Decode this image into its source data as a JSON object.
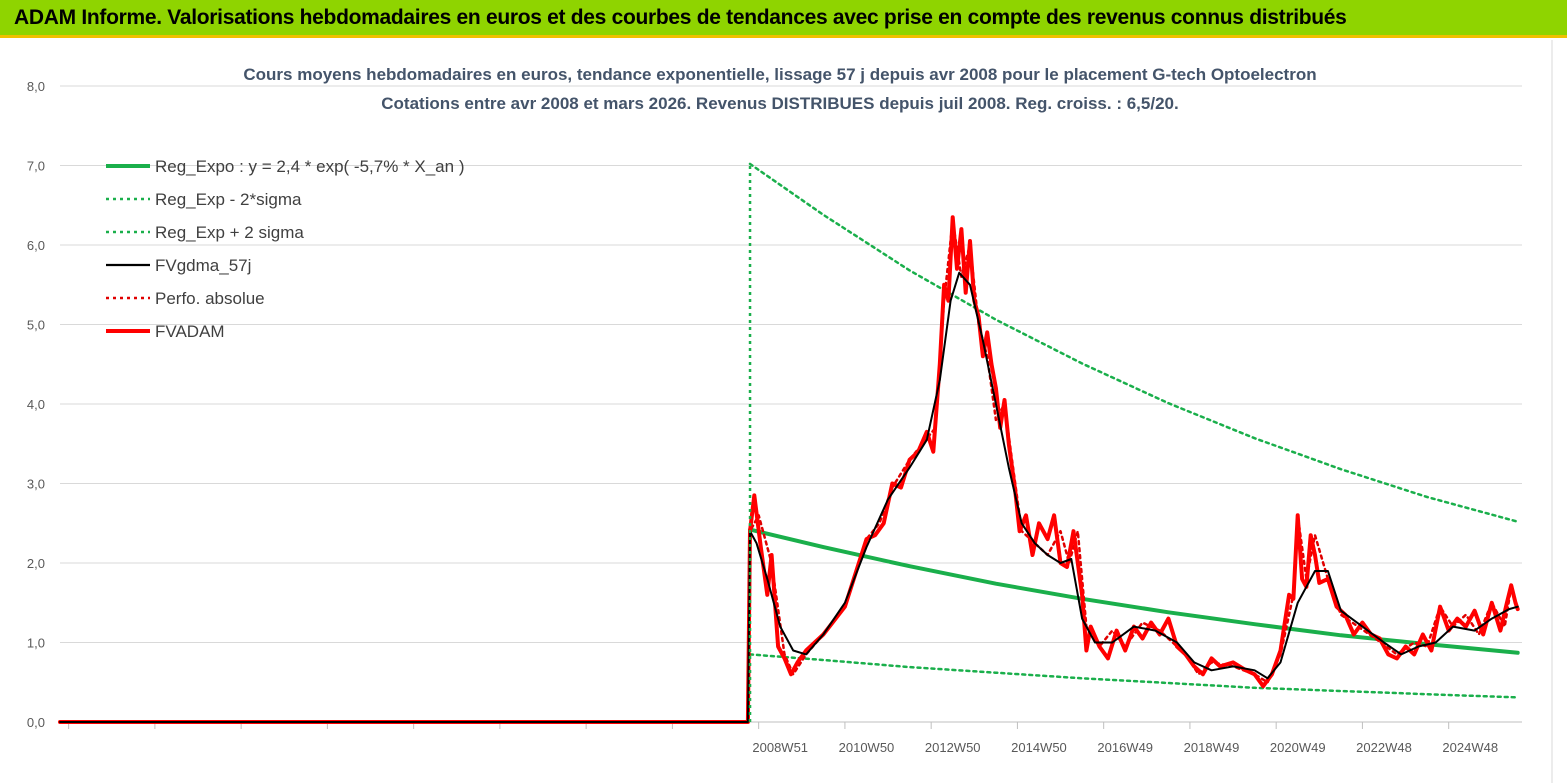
{
  "header": {
    "banner": "ADAM Informe. Valorisations hebdomadaires en euros et des courbes de tendances avec prise en compte des revenus connus distribués"
  },
  "colors": {
    "banner_bg": "#8fd400",
    "regression": "#1aaf4b",
    "sigma_band": "#1aaf4b",
    "smoothed": "#000000",
    "perfo": "#e00000",
    "price": "#ff0000"
  },
  "chart_data": {
    "type": "line",
    "title": "Cours moyens hebdomadaires en euros, tendance exponentielle, lissage 57 j depuis avr 2008 pour le placement G-tech Optoelectron",
    "subtitle": "Cotations entre avr 2008 et mars 2026. Revenus DISTRIBUES depuis juil 2008. Reg. croiss. : 6,5/20.",
    "xlabel": "",
    "ylabel": "",
    "x_range": [
      1992.3,
      2026.2
    ],
    "ylim": [
      0,
      8
    ],
    "yticks": [
      0,
      1,
      2,
      3,
      4,
      5,
      6,
      7,
      8
    ],
    "ytick_labels": [
      "0,0",
      "1,0",
      "2,0",
      "3,0",
      "4,0",
      "5,0",
      "6,0",
      "7,0",
      "8,0"
    ],
    "xtick_labels": [
      {
        "x": 2009.0,
        "label": "2008W51"
      },
      {
        "x": 2011.0,
        "label": "2010W50"
      },
      {
        "x": 2013.0,
        "label": "2012W50"
      },
      {
        "x": 2015.0,
        "label": "2014W50"
      },
      {
        "x": 2017.0,
        "label": "2016W49"
      },
      {
        "x": 2019.0,
        "label": "2018W49"
      },
      {
        "x": 2021.0,
        "label": "2020W49"
      },
      {
        "x": 2023.0,
        "label": "2022W48"
      },
      {
        "x": 2025.0,
        "label": "2024W48"
      }
    ],
    "grid": true,
    "legend_position": "top-left",
    "series": [
      {
        "name": "Reg_Expo : y = 2,4 * exp( -5,7% *  X_an )",
        "style": "solid-thick",
        "color": "#1aaf4b",
        "points": [
          [
            2008.3,
            2.42
          ],
          [
            2010,
            2.2
          ],
          [
            2012,
            1.96
          ],
          [
            2014,
            1.74
          ],
          [
            2016,
            1.55
          ],
          [
            2018,
            1.38
          ],
          [
            2020,
            1.23
          ],
          [
            2022,
            1.09
          ],
          [
            2024,
            0.98
          ],
          [
            2026.1,
            0.87
          ]
        ]
      },
      {
        "name": "Reg_Exp - 2*sigma",
        "style": "dotted",
        "color": "#1aaf4b",
        "points": [
          [
            2008.3,
            0.85
          ],
          [
            2010,
            0.78
          ],
          [
            2012,
            0.69
          ],
          [
            2014,
            0.62
          ],
          [
            2016,
            0.55
          ],
          [
            2018,
            0.49
          ],
          [
            2020,
            0.43
          ],
          [
            2022,
            0.39
          ],
          [
            2024,
            0.35
          ],
          [
            2026.1,
            0.31
          ]
        ]
      },
      {
        "name": "Reg_Exp + 2 sigma",
        "style": "dotted",
        "color": "#1aaf4b",
        "points": [
          [
            2008.3,
            7.02
          ],
          [
            2010,
            6.38
          ],
          [
            2012,
            5.68
          ],
          [
            2014,
            5.06
          ],
          [
            2016,
            4.51
          ],
          [
            2018,
            4.01
          ],
          [
            2020,
            3.57
          ],
          [
            2022,
            3.18
          ],
          [
            2024,
            2.83
          ],
          [
            2026.1,
            2.52
          ]
        ]
      },
      {
        "name": "FVgdma_57j",
        "style": "solid",
        "color": "#000000",
        "points": [
          [
            1992.3,
            0
          ],
          [
            2008.25,
            0
          ],
          [
            2008.3,
            2.4
          ],
          [
            2008.45,
            2.25
          ],
          [
            2008.7,
            1.8
          ],
          [
            2009.0,
            1.2
          ],
          [
            2009.3,
            0.9
          ],
          [
            2009.6,
            0.85
          ],
          [
            2010.0,
            1.1
          ],
          [
            2010.5,
            1.5
          ],
          [
            2011.0,
            2.2
          ],
          [
            2011.5,
            2.8
          ],
          [
            2012.0,
            3.2
          ],
          [
            2012.4,
            3.55
          ],
          [
            2012.7,
            4.3
          ],
          [
            2012.95,
            5.3
          ],
          [
            2013.15,
            5.65
          ],
          [
            2013.4,
            5.5
          ],
          [
            2013.7,
            4.8
          ],
          [
            2014.0,
            4.0
          ],
          [
            2014.3,
            3.2
          ],
          [
            2014.6,
            2.5
          ],
          [
            2014.9,
            2.25
          ],
          [
            2015.2,
            2.1
          ],
          [
            2015.5,
            2.0
          ],
          [
            2015.75,
            2.05
          ],
          [
            2016.0,
            1.3
          ],
          [
            2016.3,
            1.0
          ],
          [
            2016.7,
            1.0
          ],
          [
            2017.2,
            1.2
          ],
          [
            2017.7,
            1.15
          ],
          [
            2018.2,
            1.0
          ],
          [
            2018.6,
            0.75
          ],
          [
            2019.0,
            0.65
          ],
          [
            2019.5,
            0.7
          ],
          [
            2020.0,
            0.65
          ],
          [
            2020.3,
            0.55
          ],
          [
            2020.6,
            0.75
          ],
          [
            2021.0,
            1.5
          ],
          [
            2021.4,
            1.9
          ],
          [
            2021.7,
            1.9
          ],
          [
            2022.0,
            1.4
          ],
          [
            2022.5,
            1.2
          ],
          [
            2023.0,
            1.0
          ],
          [
            2023.4,
            0.85
          ],
          [
            2023.8,
            0.95
          ],
          [
            2024.2,
            1.0
          ],
          [
            2024.6,
            1.2
          ],
          [
            2025.1,
            1.15
          ],
          [
            2025.5,
            1.3
          ],
          [
            2025.9,
            1.42
          ],
          [
            2026.1,
            1.45
          ]
        ]
      },
      {
        "name": "Perfo. absolue",
        "style": "dotted",
        "color": "#e00000",
        "points": [
          [
            1992.3,
            0
          ],
          [
            2008.25,
            0
          ],
          [
            2008.3,
            2.4
          ],
          [
            2008.5,
            2.6
          ],
          [
            2008.8,
            2.0
          ],
          [
            2009.1,
            0.85
          ],
          [
            2009.3,
            0.6
          ],
          [
            2009.6,
            0.85
          ],
          [
            2010.0,
            1.1
          ],
          [
            2010.5,
            1.45
          ],
          [
            2011.0,
            2.3
          ],
          [
            2011.3,
            2.5
          ],
          [
            2011.6,
            2.95
          ],
          [
            2012.0,
            3.3
          ],
          [
            2012.3,
            3.5
          ],
          [
            2012.6,
            3.7
          ],
          [
            2012.8,
            5.3
          ],
          [
            2013.0,
            6.3
          ],
          [
            2013.2,
            5.6
          ],
          [
            2013.4,
            6.0
          ],
          [
            2013.6,
            5.0
          ],
          [
            2013.8,
            4.6
          ],
          [
            2014.0,
            3.8
          ],
          [
            2014.2,
            4.0
          ],
          [
            2014.35,
            3.4
          ],
          [
            2014.6,
            2.4
          ],
          [
            2014.8,
            2.3
          ],
          [
            2015.2,
            2.1
          ],
          [
            2015.5,
            2.4
          ],
          [
            2015.7,
            2.0
          ],
          [
            2015.9,
            2.4
          ],
          [
            2016.1,
            1.2
          ],
          [
            2016.4,
            0.95
          ],
          [
            2016.7,
            1.15
          ],
          [
            2017.0,
            0.95
          ],
          [
            2017.4,
            1.25
          ],
          [
            2017.8,
            1.15
          ],
          [
            2018.1,
            1.0
          ],
          [
            2018.4,
            0.85
          ],
          [
            2018.7,
            0.6
          ],
          [
            2019.0,
            0.75
          ],
          [
            2019.5,
            0.7
          ],
          [
            2020.0,
            0.6
          ],
          [
            2020.3,
            0.5
          ],
          [
            2020.6,
            0.85
          ],
          [
            2020.9,
            1.6
          ],
          [
            2021.0,
            2.6
          ],
          [
            2021.2,
            1.8
          ],
          [
            2021.4,
            2.35
          ],
          [
            2021.7,
            1.8
          ],
          [
            2022.0,
            1.35
          ],
          [
            2022.4,
            1.2
          ],
          [
            2022.8,
            1.05
          ],
          [
            2023.3,
            0.85
          ],
          [
            2023.7,
            1.0
          ],
          [
            2024.0,
            0.95
          ],
          [
            2024.3,
            1.45
          ],
          [
            2024.6,
            1.2
          ],
          [
            2024.9,
            1.35
          ],
          [
            2025.2,
            1.1
          ],
          [
            2025.5,
            1.5
          ],
          [
            2025.8,
            1.2
          ],
          [
            2025.95,
            1.7
          ],
          [
            2026.1,
            1.42
          ]
        ]
      },
      {
        "name": "FVADAM",
        "style": "solid-thick",
        "color": "#ff0000",
        "points": [
          [
            1992.3,
            0
          ],
          [
            2008.25,
            0
          ],
          [
            2008.3,
            2.4
          ],
          [
            2008.4,
            2.85
          ],
          [
            2008.55,
            2.2
          ],
          [
            2008.7,
            1.6
          ],
          [
            2008.8,
            2.1
          ],
          [
            2008.95,
            0.95
          ],
          [
            2009.1,
            0.8
          ],
          [
            2009.25,
            0.6
          ],
          [
            2009.4,
            0.75
          ],
          [
            2009.6,
            0.9
          ],
          [
            2010.0,
            1.1
          ],
          [
            2010.5,
            1.45
          ],
          [
            2011.0,
            2.3
          ],
          [
            2011.2,
            2.35
          ],
          [
            2011.4,
            2.5
          ],
          [
            2011.6,
            3.0
          ],
          [
            2011.8,
            2.95
          ],
          [
            2012.0,
            3.3
          ],
          [
            2012.2,
            3.4
          ],
          [
            2012.4,
            3.65
          ],
          [
            2012.55,
            3.4
          ],
          [
            2012.7,
            4.5
          ],
          [
            2012.8,
            5.5
          ],
          [
            2012.9,
            5.3
          ],
          [
            2013.0,
            6.35
          ],
          [
            2013.1,
            5.7
          ],
          [
            2013.2,
            6.2
          ],
          [
            2013.3,
            5.4
          ],
          [
            2013.4,
            6.05
          ],
          [
            2013.5,
            5.3
          ],
          [
            2013.6,
            5.1
          ],
          [
            2013.7,
            4.6
          ],
          [
            2013.8,
            4.9
          ],
          [
            2013.9,
            4.5
          ],
          [
            2014.0,
            4.2
          ],
          [
            2014.1,
            3.7
          ],
          [
            2014.2,
            4.05
          ],
          [
            2014.3,
            3.5
          ],
          [
            2014.45,
            2.9
          ],
          [
            2014.55,
            2.4
          ],
          [
            2014.7,
            2.6
          ],
          [
            2014.85,
            2.1
          ],
          [
            2015.0,
            2.5
          ],
          [
            2015.2,
            2.3
          ],
          [
            2015.35,
            2.6
          ],
          [
            2015.5,
            2.0
          ],
          [
            2015.65,
            1.95
          ],
          [
            2015.8,
            2.4
          ],
          [
            2015.9,
            2.0
          ],
          [
            2016.0,
            1.6
          ],
          [
            2016.1,
            0.9
          ],
          [
            2016.2,
            1.2
          ],
          [
            2016.4,
            0.95
          ],
          [
            2016.6,
            0.8
          ],
          [
            2016.8,
            1.15
          ],
          [
            2017.0,
            0.9
          ],
          [
            2017.2,
            1.2
          ],
          [
            2017.4,
            1.05
          ],
          [
            2017.6,
            1.25
          ],
          [
            2017.8,
            1.1
          ],
          [
            2018.0,
            1.3
          ],
          [
            2018.2,
            0.95
          ],
          [
            2018.4,
            0.85
          ],
          [
            2018.6,
            0.7
          ],
          [
            2018.8,
            0.6
          ],
          [
            2019.0,
            0.8
          ],
          [
            2019.2,
            0.7
          ],
          [
            2019.5,
            0.75
          ],
          [
            2019.8,
            0.65
          ],
          [
            2020.0,
            0.6
          ],
          [
            2020.2,
            0.45
          ],
          [
            2020.4,
            0.6
          ],
          [
            2020.6,
            0.9
          ],
          [
            2020.8,
            1.6
          ],
          [
            2020.9,
            1.55
          ],
          [
            2021.0,
            2.6
          ],
          [
            2021.1,
            1.8
          ],
          [
            2021.2,
            1.7
          ],
          [
            2021.3,
            2.35
          ],
          [
            2021.4,
            2.1
          ],
          [
            2021.5,
            1.75
          ],
          [
            2021.7,
            1.8
          ],
          [
            2021.9,
            1.45
          ],
          [
            2022.1,
            1.35
          ],
          [
            2022.3,
            1.1
          ],
          [
            2022.5,
            1.25
          ],
          [
            2022.7,
            1.1
          ],
          [
            2022.9,
            1.05
          ],
          [
            2023.1,
            0.85
          ],
          [
            2023.3,
            0.8
          ],
          [
            2023.5,
            0.95
          ],
          [
            2023.7,
            0.85
          ],
          [
            2023.9,
            1.1
          ],
          [
            2024.1,
            0.9
          ],
          [
            2024.3,
            1.45
          ],
          [
            2024.5,
            1.15
          ],
          [
            2024.7,
            1.3
          ],
          [
            2024.9,
            1.2
          ],
          [
            2025.1,
            1.4
          ],
          [
            2025.3,
            1.1
          ],
          [
            2025.5,
            1.5
          ],
          [
            2025.7,
            1.15
          ],
          [
            2025.85,
            1.5
          ],
          [
            2025.95,
            1.72
          ],
          [
            2026.05,
            1.5
          ],
          [
            2026.1,
            1.42
          ]
        ]
      }
    ]
  }
}
